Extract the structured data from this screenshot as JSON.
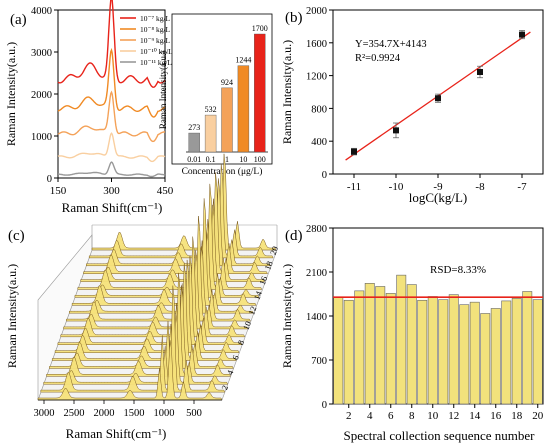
{
  "panel_labels": [
    "(a)",
    "(b)",
    "(c)",
    "(d)"
  ],
  "chart_data": [
    {
      "panel": "(a)",
      "type": "line",
      "xlabel": "Raman Shift(cm⁻¹)",
      "ylabel": "Raman Intensity(a.u.)",
      "xlim": [
        150,
        450
      ],
      "ylim": [
        0,
        4000
      ],
      "x_ticks": [
        "150",
        "300",
        "450"
      ],
      "y_ticks": [
        "0",
        "1000",
        "2000",
        "3000",
        "4000"
      ],
      "legend_position": "top-right",
      "series": [
        {
          "name": "10⁻⁷ kg/L",
          "color": "#e8231a",
          "offset": 2350,
          "peak": 1700
        },
        {
          "name": "10⁻⁸ kg/L",
          "color": "#f08a24",
          "offset": 1650,
          "peak": 1244
        },
        {
          "name": "10⁻⁹ kg/L",
          "color": "#f4a259",
          "offset": 1050,
          "peak": 924
        },
        {
          "name": "10⁻¹⁰ kg/L",
          "color": "#f9cfa0",
          "offset": 500,
          "peak": 532
        },
        {
          "name": "10⁻¹¹ kg/L",
          "color": "#999999",
          "offset": 80,
          "peak": 273
        }
      ],
      "inset": {
        "type": "bar",
        "ylabel": "Raman Intensity(a.u.)",
        "xlabel": "Concentration (μg/L)",
        "categories": [
          "0.01",
          "0.1",
          "1",
          "10",
          "100"
        ],
        "values": [
          273,
          532,
          924,
          1244,
          1700
        ],
        "colors": [
          "#999999",
          "#f9cfa0",
          "#f4a259",
          "#f08a24",
          "#e8231a"
        ]
      }
    },
    {
      "panel": "(b)",
      "type": "scatter",
      "xlabel": "logC(kg/L)",
      "ylabel": "Raman Intensity(a.u.)",
      "x": [
        -11,
        -10,
        -9,
        -8,
        -7
      ],
      "y": [
        273,
        532,
        924,
        1244,
        1700
      ],
      "err": [
        40,
        90,
        50,
        70,
        50
      ],
      "xlim": [
        -11.5,
        -6.5
      ],
      "ylim": [
        0,
        2000
      ],
      "x_ticks": [
        "-11",
        "-10",
        "-9",
        "-8",
        "-7"
      ],
      "y_ticks": [
        "0",
        "400",
        "800",
        "1200",
        "1600",
        "2000"
      ],
      "fit": {
        "slope": 354.7,
        "intercept": 4143,
        "color": "#e8231a"
      },
      "annotations": [
        "Y=354.7X+4143",
        "R²=0.9924"
      ]
    },
    {
      "panel": "(c)",
      "type": "area",
      "xlabel": "Raman Shift(cm⁻¹)",
      "ylabel": "Raman Intensity(a.u.)",
      "x_ticks": [
        "3000",
        "2500",
        "2000",
        "1500",
        "1000",
        "500"
      ],
      "depth_ticks": [
        "2",
        "4",
        "6",
        "8",
        "10",
        "12",
        "14",
        "16",
        "18",
        "20"
      ],
      "count": 20,
      "fill": "#f6e27a"
    },
    {
      "panel": "(d)",
      "type": "bar",
      "xlabel": "Spectral collection sequence number",
      "ylabel": "Raman Intensity(a.u.)",
      "categories": [
        "1",
        "2",
        "3",
        "4",
        "5",
        "6",
        "7",
        "8",
        "9",
        "10",
        "11",
        "12",
        "13",
        "14",
        "15",
        "16",
        "17",
        "18",
        "19",
        "20"
      ],
      "values": [
        1700,
        1650,
        1800,
        1920,
        1870,
        1760,
        2050,
        1900,
        1650,
        1710,
        1660,
        1740,
        1580,
        1620,
        1440,
        1520,
        1640,
        1680,
        1790,
        1660
      ],
      "mean": 1700,
      "ylim": [
        0,
        2800
      ],
      "x_ticks": [
        "2",
        "4",
        "6",
        "8",
        "10",
        "12",
        "14",
        "16",
        "18",
        "20"
      ],
      "y_ticks": [
        "0",
        "700",
        "1400",
        "2100",
        "2800"
      ],
      "annotations": [
        "RSD=8.33%"
      ],
      "bar_color": "#f2e27c",
      "mean_line_color": "#e8231a"
    }
  ]
}
